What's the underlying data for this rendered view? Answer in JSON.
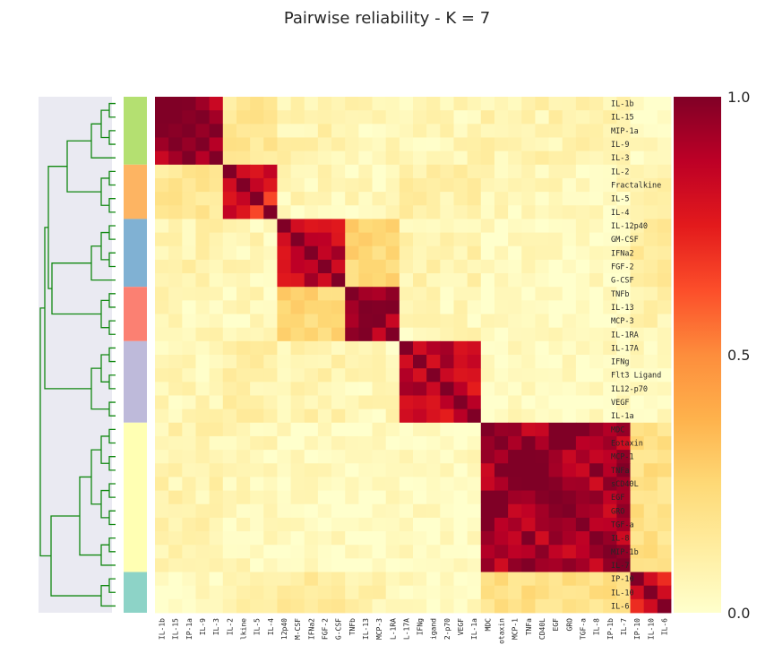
{
  "chart_data": {
    "type": "heatmap",
    "title": "Pairwise reliability - K = 7",
    "labels": [
      "IL-1b",
      "IL-15",
      "MIP-1a",
      "IL-9",
      "IL-3",
      "IL-2",
      "Fractalkine",
      "IL-5",
      "IL-4",
      "IL-12p40",
      "GM-CSF",
      "IFNa2",
      "FGF-2",
      "G-CSF",
      "TNFb",
      "IL-13",
      "MCP-3",
      "IL-1RA",
      "IL-17A",
      "IFNg",
      "Flt3 Ligand",
      "IL12-p70",
      "VEGF",
      "IL-1a",
      "MDC",
      "Eotaxin",
      "MCP-1",
      "TNFa",
      "sCD40L",
      "EGF",
      "GRO",
      "TGF-a",
      "IL-8",
      "MIP-1b",
      "IL-7",
      "IP-10",
      "IL-10",
      "IL-6"
    ],
    "x_tick_labels": [
      "IL-1b",
      "IL-15",
      "IP-1a",
      "IL-9",
      "IL-3",
      "IL-2",
      "lkine",
      "IL-5",
      "IL-4",
      "12p40",
      "M-CSF",
      "IFNa2",
      "FGF-2",
      "G-CSF",
      "TNFb",
      "IL-13",
      "MCP-3",
      "L-1RA",
      "L-17A",
      "IFNg",
      "igand",
      "2-p70",
      "VEGF",
      "IL-1a",
      "MDC",
      "otaxin",
      "MCP-1",
      "TNFa",
      "CD40L",
      "EGF",
      "GRO",
      "TGF-a",
      "IL-8",
      "IP-1b",
      "IL-7",
      "IP-10",
      "IL-10",
      "IL-6"
    ],
    "clusters": [
      {
        "start": 0,
        "end": 4,
        "color": "#b4e071"
      },
      {
        "start": 5,
        "end": 8,
        "color": "#fdb462"
      },
      {
        "start": 9,
        "end": 13,
        "color": "#80b1d3"
      },
      {
        "start": 14,
        "end": 17,
        "color": "#fb8072"
      },
      {
        "start": 18,
        "end": 23,
        "color": "#bebada"
      },
      {
        "start": 24,
        "end": 34,
        "color": "#ffffb3"
      },
      {
        "start": 35,
        "end": 37,
        "color": "#8dd3c7"
      }
    ],
    "block_values": [
      [
        0.92,
        0.15,
        0.08,
        0.05,
        0.06,
        0.08,
        0.03
      ],
      [
        0.15,
        0.75,
        0.06,
        0.05,
        0.1,
        0.05,
        0.1
      ],
      [
        0.08,
        0.06,
        0.85,
        0.25,
        0.08,
        0.03,
        0.12
      ],
      [
        0.05,
        0.05,
        0.25,
        0.95,
        0.05,
        0.02,
        0.08
      ],
      [
        0.06,
        0.1,
        0.08,
        0.05,
        0.85,
        0.03,
        0.03
      ],
      [
        0.08,
        0.05,
        0.03,
        0.02,
        0.03,
        0.92,
        0.2
      ],
      [
        0.03,
        0.1,
        0.12,
        0.08,
        0.03,
        0.2,
        0.8
      ]
    ],
    "colorbar": {
      "min": 0.0,
      "max": 1.0,
      "ticks": [
        "0.0",
        "0.5",
        "1.0"
      ]
    },
    "colormap": [
      "#ffffcc",
      "#ffeda0",
      "#fed976",
      "#feb24c",
      "#fd8d3c",
      "#fc4e2a",
      "#e31a1c",
      "#bd0026",
      "#800026"
    ],
    "grid": false,
    "dendrogram_color": "#118811"
  }
}
